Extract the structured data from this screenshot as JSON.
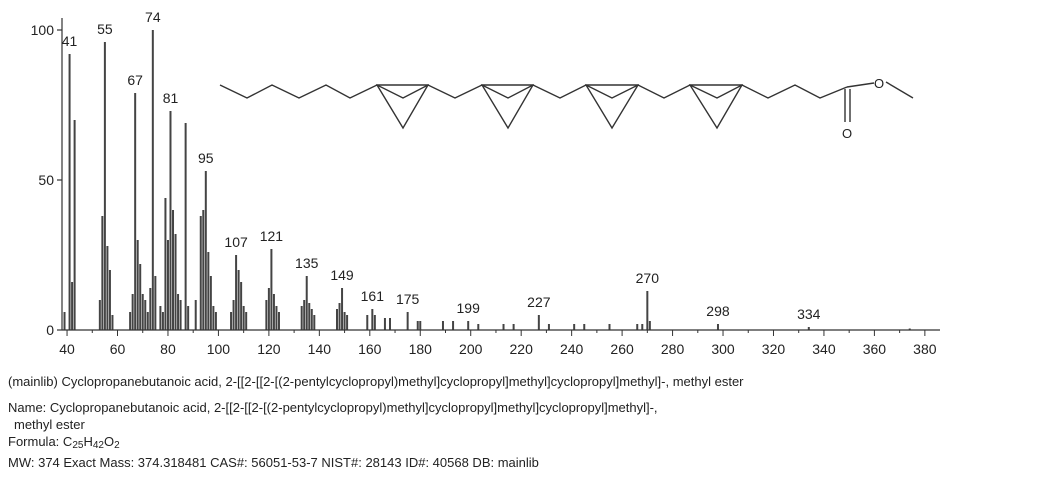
{
  "chart_data": {
    "type": "bar",
    "xlim": [
      38,
      386
    ],
    "ylim": [
      0,
      100
    ],
    "x_ticks": [
      40,
      60,
      80,
      100,
      120,
      140,
      160,
      180,
      200,
      220,
      240,
      260,
      280,
      300,
      320,
      340,
      360,
      380
    ],
    "y_ticks": [
      0,
      50,
      100
    ],
    "grid": false,
    "peaks": [
      {
        "mz": 41,
        "intensity": 92,
        "label": "41"
      },
      {
        "mz": 43,
        "intensity": 70
      },
      {
        "mz": 42,
        "intensity": 16
      },
      {
        "mz": 39,
        "intensity": 6
      },
      {
        "mz": 53,
        "intensity": 10
      },
      {
        "mz": 54,
        "intensity": 38
      },
      {
        "mz": 55,
        "intensity": 96,
        "label": "55"
      },
      {
        "mz": 56,
        "intensity": 28
      },
      {
        "mz": 57,
        "intensity": 20
      },
      {
        "mz": 58,
        "intensity": 5
      },
      {
        "mz": 65,
        "intensity": 6
      },
      {
        "mz": 66,
        "intensity": 12
      },
      {
        "mz": 67,
        "intensity": 79,
        "label": "67"
      },
      {
        "mz": 68,
        "intensity": 30
      },
      {
        "mz": 69,
        "intensity": 22
      },
      {
        "mz": 70,
        "intensity": 12
      },
      {
        "mz": 71,
        "intensity": 10
      },
      {
        "mz": 72,
        "intensity": 6
      },
      {
        "mz": 73,
        "intensity": 14
      },
      {
        "mz": 74,
        "intensity": 100,
        "label": "74"
      },
      {
        "mz": 75,
        "intensity": 18
      },
      {
        "mz": 77,
        "intensity": 8
      },
      {
        "mz": 78,
        "intensity": 6
      },
      {
        "mz": 79,
        "intensity": 44
      },
      {
        "mz": 80,
        "intensity": 30
      },
      {
        "mz": 81,
        "intensity": 73,
        "label": "81"
      },
      {
        "mz": 82,
        "intensity": 40
      },
      {
        "mz": 83,
        "intensity": 32
      },
      {
        "mz": 84,
        "intensity": 12
      },
      {
        "mz": 85,
        "intensity": 10
      },
      {
        "mz": 87,
        "intensity": 69
      },
      {
        "mz": 88,
        "intensity": 8
      },
      {
        "mz": 91,
        "intensity": 10
      },
      {
        "mz": 93,
        "intensity": 38
      },
      {
        "mz": 94,
        "intensity": 40
      },
      {
        "mz": 95,
        "intensity": 53,
        "label": "95"
      },
      {
        "mz": 96,
        "intensity": 26
      },
      {
        "mz": 97,
        "intensity": 18
      },
      {
        "mz": 98,
        "intensity": 8
      },
      {
        "mz": 99,
        "intensity": 6
      },
      {
        "mz": 105,
        "intensity": 6
      },
      {
        "mz": 106,
        "intensity": 10
      },
      {
        "mz": 107,
        "intensity": 25,
        "label": "107"
      },
      {
        "mz": 108,
        "intensity": 20
      },
      {
        "mz": 109,
        "intensity": 16
      },
      {
        "mz": 110,
        "intensity": 8
      },
      {
        "mz": 111,
        "intensity": 6
      },
      {
        "mz": 119,
        "intensity": 10
      },
      {
        "mz": 120,
        "intensity": 14
      },
      {
        "mz": 121,
        "intensity": 27,
        "label": "121"
      },
      {
        "mz": 122,
        "intensity": 12
      },
      {
        "mz": 123,
        "intensity": 8
      },
      {
        "mz": 124,
        "intensity": 6
      },
      {
        "mz": 133,
        "intensity": 8
      },
      {
        "mz": 134,
        "intensity": 10
      },
      {
        "mz": 135,
        "intensity": 18,
        "label": "135"
      },
      {
        "mz": 136,
        "intensity": 9
      },
      {
        "mz": 137,
        "intensity": 7
      },
      {
        "mz": 138,
        "intensity": 5
      },
      {
        "mz": 147,
        "intensity": 7
      },
      {
        "mz": 148,
        "intensity": 9
      },
      {
        "mz": 149,
        "intensity": 14,
        "label": "149"
      },
      {
        "mz": 150,
        "intensity": 6
      },
      {
        "mz": 151,
        "intensity": 5
      },
      {
        "mz": 159,
        "intensity": 5
      },
      {
        "mz": 161,
        "intensity": 7,
        "label": "161"
      },
      {
        "mz": 162,
        "intensity": 5
      },
      {
        "mz": 166,
        "intensity": 4
      },
      {
        "mz": 168,
        "intensity": 4
      },
      {
        "mz": 175,
        "intensity": 6,
        "label": "175"
      },
      {
        "mz": 179,
        "intensity": 3
      },
      {
        "mz": 180,
        "intensity": 3
      },
      {
        "mz": 189,
        "intensity": 3
      },
      {
        "mz": 193,
        "intensity": 3
      },
      {
        "mz": 199,
        "intensity": 3,
        "label": "199"
      },
      {
        "mz": 203,
        "intensity": 2
      },
      {
        "mz": 213,
        "intensity": 2
      },
      {
        "mz": 217,
        "intensity": 2
      },
      {
        "mz": 227,
        "intensity": 5,
        "label": "227"
      },
      {
        "mz": 231,
        "intensity": 2
      },
      {
        "mz": 241,
        "intensity": 2
      },
      {
        "mz": 245,
        "intensity": 2
      },
      {
        "mz": 255,
        "intensity": 2
      },
      {
        "mz": 266,
        "intensity": 2
      },
      {
        "mz": 268,
        "intensity": 2
      },
      {
        "mz": 270,
        "intensity": 13,
        "label": "270"
      },
      {
        "mz": 271,
        "intensity": 3
      },
      {
        "mz": 298,
        "intensity": 2,
        "label": "298"
      },
      {
        "mz": 334,
        "intensity": 1,
        "label": "334"
      },
      {
        "mz": 374,
        "intensity": 0.5
      }
    ]
  },
  "structure": {
    "atom_labels": [
      "O",
      "O"
    ]
  },
  "caption": "(mainlib) Cyclopropanebutanoic acid, 2-[[2-[[2-[(2-pentylcyclopropyl)methyl]cyclopropyl]methyl]cyclopropyl]methyl]-, methyl ester",
  "info": {
    "name_line1": "Name: Cyclopropanebutanoic acid, 2-[[2-[[2-[(2-pentylcyclopropyl)methyl]cyclopropyl]methyl]cyclopropyl]methyl]-,",
    "name_line2": "methyl ester",
    "formula_label": "Formula:",
    "formula_c": "C",
    "formula_c_count": "25",
    "formula_h": "H",
    "formula_h_count": "42",
    "formula_o": "O",
    "formula_o_count": "2",
    "mw_line": "MW: 374 Exact Mass: 374.318481 CAS#: 56051-53-7 NIST#: 28143 ID#: 40568 DB: mainlib"
  }
}
